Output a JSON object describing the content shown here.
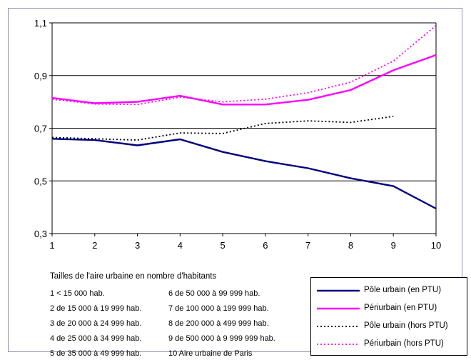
{
  "chart_data": {
    "type": "line",
    "x": [
      1,
      2,
      3,
      4,
      5,
      6,
      7,
      8,
      9,
      10
    ],
    "ylim": [
      0.3,
      1.1
    ],
    "yticks": [
      "0,3",
      "0,5",
      "0,7",
      "0,9",
      "1,1"
    ],
    "ytick_values": [
      0.3,
      0.5,
      0.7,
      0.9,
      1.1
    ],
    "xticks": [
      "1",
      "2",
      "3",
      "4",
      "5",
      "6",
      "7",
      "8",
      "9",
      "10"
    ],
    "grid": "horizontal",
    "legend_position": "bottom-right",
    "series": [
      {
        "name": "Pôle urbain (en PTU)",
        "color": "#000080",
        "style": "solid",
        "values": [
          0.66,
          0.655,
          0.635,
          0.658,
          0.61,
          0.575,
          0.548,
          0.51,
          0.48,
          0.395
        ]
      },
      {
        "name": "Périurbain (en PTU)",
        "color": "#ff00ff",
        "style": "solid",
        "values": [
          0.815,
          0.795,
          0.8,
          0.823,
          0.79,
          0.79,
          0.808,
          0.845,
          0.92,
          0.978
        ]
      },
      {
        "name": "Pôle urbain (hors PTU)",
        "color": "#000000",
        "style": "dotted",
        "values": [
          0.665,
          0.66,
          0.655,
          0.682,
          0.68,
          0.718,
          0.728,
          0.722,
          0.745,
          null
        ]
      },
      {
        "name": "Périurbain (hors PTU)",
        "color": "#ff00ff",
        "style": "dotted",
        "values": [
          0.81,
          0.792,
          0.79,
          0.818,
          0.8,
          0.81,
          0.835,
          0.875,
          0.955,
          1.09
        ]
      }
    ]
  },
  "notes": {
    "title": "Tailles de l'aire urbaine en nombre d'habitants",
    "categories": [
      "1 < 15 000 hab.",
      "2 de 15 000 à 19 999 hab.",
      "3 de 20 000 à 24 999 hab.",
      "4 de 25 000 à 34 999 hab.",
      "5 de 35 000 à 49 999 hab.",
      "6 de 50 000 à 99 999 hab.",
      "7 de 100 000 à 199 999 hab.",
      "8 de 200 000 à 499 999 hab.",
      "9 de 500 000 à 9 999 999 hab.",
      "10 Aire urbaine de Paris"
    ]
  }
}
